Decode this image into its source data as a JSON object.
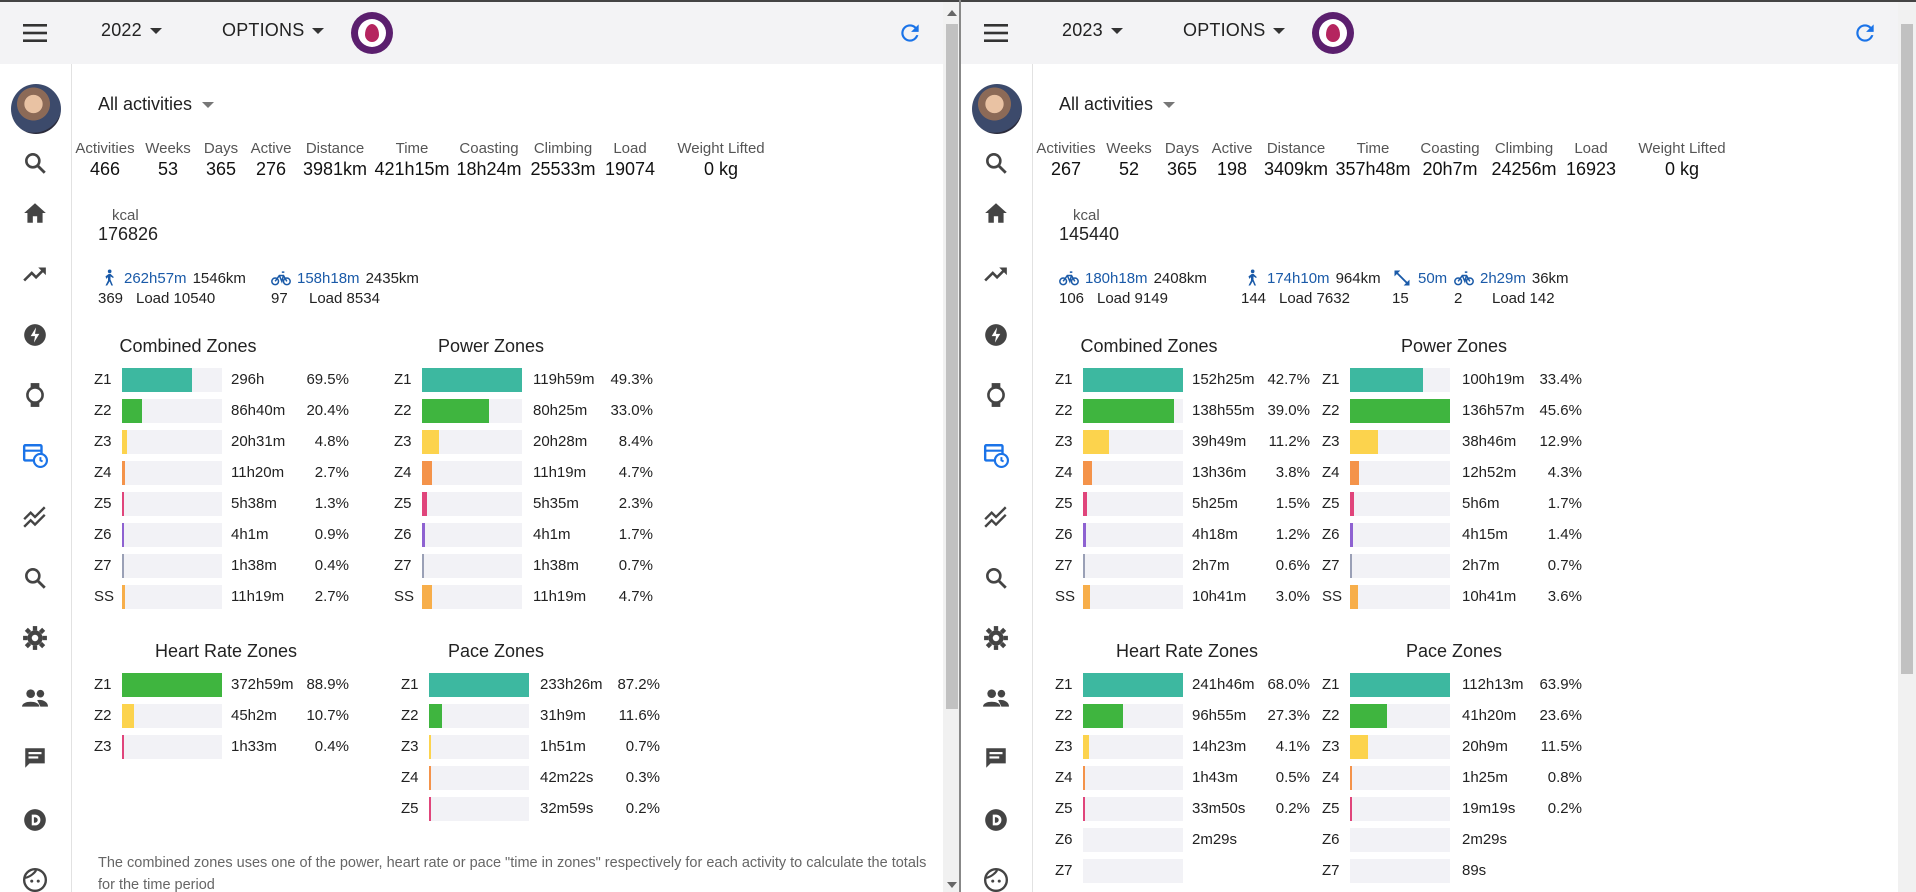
{
  "colors": {
    "z1": "#3db8a0",
    "z2": "#3fb53f",
    "z3": "#fcd34d",
    "z4": "#f4934a",
    "z5": "#e0457b",
    "z6": "#8e62d1",
    "z7": "#9aa0b6",
    "ss": "#f7ae4a",
    "accent": "#1a73e8"
  },
  "sidebar_icons": [
    "search-icon",
    "home-icon",
    "trending-icon",
    "bolt-icon",
    "watch-icon",
    "calendar-clock-icon",
    "show-chart-icon",
    "search-icon",
    "settings-icon",
    "people-icon",
    "chat-icon",
    "disqus-icon",
    "face-icon"
  ],
  "left": {
    "year": "2022",
    "options": "OPTIONS",
    "filter": "All activities",
    "stats": [
      {
        "label": "Activities",
        "value": "466"
      },
      {
        "label": "Weeks",
        "value": "53"
      },
      {
        "label": "Days",
        "value": "365"
      },
      {
        "label": "Active",
        "value": "276"
      },
      {
        "label": "Distance",
        "value": "3981km"
      },
      {
        "label": "Time",
        "value": "421h15m"
      },
      {
        "label": "Coasting",
        "value": "18h24m"
      },
      {
        "label": "Climbing",
        "value": "25533m"
      },
      {
        "label": "Load",
        "value": "19074"
      },
      {
        "label": "Weight Lifted",
        "value": "0 kg"
      }
    ],
    "kcal": {
      "label": "kcal",
      "value": "176826"
    },
    "sports": [
      {
        "icon": "run-icon",
        "time": "262h57m",
        "dist": "1546km",
        "count": "369",
        "load": "Load 10540"
      },
      {
        "icon": "bike-icon",
        "time": "158h18m",
        "dist": "2435km",
        "count": "97",
        "load": "Load 8534"
      }
    ],
    "zone_groups": [
      {
        "title": "Combined Zones",
        "rows": [
          {
            "z": "Z1",
            "t": "296h",
            "p": "69.5%",
            "f": 69.5,
            "c": "z1"
          },
          {
            "z": "Z2",
            "t": "86h40m",
            "p": "20.4%",
            "f": 20.4,
            "c": "z2"
          },
          {
            "z": "Z3",
            "t": "20h31m",
            "p": "4.8%",
            "f": 4.8,
            "c": "z3"
          },
          {
            "z": "Z4",
            "t": "11h20m",
            "p": "2.7%",
            "f": 2.7,
            "c": "z4"
          },
          {
            "z": "Z5",
            "t": "5h38m",
            "p": "1.3%",
            "f": 1.3,
            "c": "z5"
          },
          {
            "z": "Z6",
            "t": "4h1m",
            "p": "0.9%",
            "f": 0.9,
            "c": "z6"
          },
          {
            "z": "Z7",
            "t": "1h38m",
            "p": "0.4%",
            "f": 0.4,
            "c": "z7"
          },
          {
            "z": "SS",
            "t": "11h19m",
            "p": "2.7%",
            "f": 2.7,
            "c": "ss"
          }
        ]
      },
      {
        "title": "Power Zones",
        "rows": [
          {
            "z": "Z1",
            "t": "119h59m",
            "p": "49.3%",
            "f": 100,
            "c": "z1"
          },
          {
            "z": "Z2",
            "t": "80h25m",
            "p": "33.0%",
            "f": 67,
            "c": "z2"
          },
          {
            "z": "Z3",
            "t": "20h28m",
            "p": "8.4%",
            "f": 17,
            "c": "z3"
          },
          {
            "z": "Z4",
            "t": "11h19m",
            "p": "4.7%",
            "f": 9.5,
            "c": "z4"
          },
          {
            "z": "Z5",
            "t": "5h35m",
            "p": "2.3%",
            "f": 4.7,
            "c": "z5"
          },
          {
            "z": "Z6",
            "t": "4h1m",
            "p": "1.7%",
            "f": 3.4,
            "c": "z6"
          },
          {
            "z": "Z7",
            "t": "1h38m",
            "p": "0.7%",
            "f": 1.4,
            "c": "z7"
          },
          {
            "z": "SS",
            "t": "11h19m",
            "p": "4.7%",
            "f": 9.5,
            "c": "ss"
          }
        ]
      },
      {
        "title": "Heart Rate Zones",
        "rows": [
          {
            "z": "Z1",
            "t": "372h59m",
            "p": "88.9%",
            "f": 100,
            "c": "z2"
          },
          {
            "z": "Z2",
            "t": "45h2m",
            "p": "10.7%",
            "f": 12,
            "c": "z3"
          },
          {
            "z": "Z3",
            "t": "1h33m",
            "p": "0.4%",
            "f": 0.5,
            "c": "z5"
          }
        ]
      },
      {
        "title": "Pace Zones",
        "rows": [
          {
            "z": "Z1",
            "t": "233h26m",
            "p": "87.2%",
            "f": 100,
            "c": "z1"
          },
          {
            "z": "Z2",
            "t": "31h9m",
            "p": "11.6%",
            "f": 13,
            "c": "z2"
          },
          {
            "z": "Z3",
            "t": "1h51m",
            "p": "0.7%",
            "f": 0.8,
            "c": "z3"
          },
          {
            "z": "Z4",
            "t": "42m22s",
            "p": "0.3%",
            "f": 0.4,
            "c": "z4"
          },
          {
            "z": "Z5",
            "t": "32m59s",
            "p": "0.2%",
            "f": 0.3,
            "c": "z5"
          }
        ]
      }
    ],
    "footnote": "The combined zones uses one of the power, heart rate or pace \"time in zones\" respectively for each activity to calculate the totals for the time period"
  },
  "right": {
    "year": "2023",
    "options": "OPTIONS",
    "filter": "All activities",
    "stats": [
      {
        "label": "Activities",
        "value": "267"
      },
      {
        "label": "Weeks",
        "value": "52"
      },
      {
        "label": "Days",
        "value": "365"
      },
      {
        "label": "Active",
        "value": "198"
      },
      {
        "label": "Distance",
        "value": "3409km"
      },
      {
        "label": "Time",
        "value": "357h48m"
      },
      {
        "label": "Coasting",
        "value": "20h7m"
      },
      {
        "label": "Climbing",
        "value": "24256m"
      },
      {
        "label": "Load",
        "value": "16923"
      },
      {
        "label": "Weight Lifted",
        "value": "0 kg"
      }
    ],
    "kcal": {
      "label": "kcal",
      "value": "145440"
    },
    "sports": [
      {
        "icon": "bike-icon",
        "time": "180h18m",
        "dist": "2408km",
        "count": "106",
        "load": "Load 9149"
      },
      {
        "icon": "run-icon",
        "time": "174h10m",
        "dist": "964km",
        "count": "144",
        "load": "Load 7632"
      },
      {
        "icon": "expand-icon",
        "time": "50m",
        "dist": "",
        "count": "15",
        "load": ""
      },
      {
        "icon": "bike-icon",
        "time": "2h29m",
        "dist": "36km",
        "count": "2",
        "load": "Load 142"
      }
    ],
    "zone_groups": [
      {
        "title": "Combined Zones",
        "rows": [
          {
            "z": "Z1",
            "t": "152h25m",
            "p": "42.7%",
            "f": 100,
            "c": "z1"
          },
          {
            "z": "Z2",
            "t": "138h55m",
            "p": "39.0%",
            "f": 91,
            "c": "z2"
          },
          {
            "z": "Z3",
            "t": "39h49m",
            "p": "11.2%",
            "f": 26,
            "c": "z3"
          },
          {
            "z": "Z4",
            "t": "13h36m",
            "p": "3.8%",
            "f": 9,
            "c": "z4"
          },
          {
            "z": "Z5",
            "t": "5h25m",
            "p": "1.5%",
            "f": 3.5,
            "c": "z5"
          },
          {
            "z": "Z6",
            "t": "4h18m",
            "p": "1.2%",
            "f": 2.8,
            "c": "z6"
          },
          {
            "z": "Z7",
            "t": "2h7m",
            "p": "0.6%",
            "f": 1.4,
            "c": "z7"
          },
          {
            "z": "SS",
            "t": "10h41m",
            "p": "3.0%",
            "f": 7,
            "c": "ss"
          }
        ]
      },
      {
        "title": "Power Zones",
        "rows": [
          {
            "z": "Z1",
            "t": "100h19m",
            "p": "33.4%",
            "f": 73,
            "c": "z1"
          },
          {
            "z": "Z2",
            "t": "136h57m",
            "p": "45.6%",
            "f": 100,
            "c": "z2"
          },
          {
            "z": "Z3",
            "t": "38h46m",
            "p": "12.9%",
            "f": 28,
            "c": "z3"
          },
          {
            "z": "Z4",
            "t": "12h52m",
            "p": "4.3%",
            "f": 9.4,
            "c": "z4"
          },
          {
            "z": "Z5",
            "t": "5h6m",
            "p": "1.7%",
            "f": 3.7,
            "c": "z5"
          },
          {
            "z": "Z6",
            "t": "4h15m",
            "p": "1.4%",
            "f": 3.1,
            "c": "z6"
          },
          {
            "z": "Z7",
            "t": "2h7m",
            "p": "0.7%",
            "f": 1.5,
            "c": "z7"
          },
          {
            "z": "SS",
            "t": "10h41m",
            "p": "3.6%",
            "f": 7.9,
            "c": "ss"
          }
        ]
      },
      {
        "title": "Heart Rate Zones",
        "rows": [
          {
            "z": "Z1",
            "t": "241h46m",
            "p": "68.0%",
            "f": 100,
            "c": "z1"
          },
          {
            "z": "Z2",
            "t": "96h55m",
            "p": "27.3%",
            "f": 40,
            "c": "z2"
          },
          {
            "z": "Z3",
            "t": "14h23m",
            "p": "4.1%",
            "f": 6,
            "c": "z3"
          },
          {
            "z": "Z4",
            "t": "1h43m",
            "p": "0.5%",
            "f": 0.7,
            "c": "z4"
          },
          {
            "z": "Z5",
            "t": "33m50s",
            "p": "0.2%",
            "f": 0.3,
            "c": "z5"
          },
          {
            "z": "Z6",
            "t": "2m29s",
            "p": "",
            "f": 0,
            "c": "z6"
          },
          {
            "z": "Z7",
            "t": "",
            "p": "",
            "f": 0,
            "c": "z7"
          }
        ]
      },
      {
        "title": "Pace Zones",
        "rows": [
          {
            "z": "Z1",
            "t": "112h13m",
            "p": "63.9%",
            "f": 100,
            "c": "z1"
          },
          {
            "z": "Z2",
            "t": "41h20m",
            "p": "23.6%",
            "f": 37,
            "c": "z2"
          },
          {
            "z": "Z3",
            "t": "20h9m",
            "p": "11.5%",
            "f": 18,
            "c": "z3"
          },
          {
            "z": "Z4",
            "t": "1h25m",
            "p": "0.8%",
            "f": 1.2,
            "c": "z4"
          },
          {
            "z": "Z5",
            "t": "19m19s",
            "p": "0.2%",
            "f": 0.3,
            "c": "z5"
          },
          {
            "z": "Z6",
            "t": "2m29s",
            "p": "",
            "f": 0,
            "c": "z6"
          },
          {
            "z": "Z7",
            "t": "89s",
            "p": "",
            "f": 0,
            "c": "z7"
          }
        ]
      }
    ]
  }
}
